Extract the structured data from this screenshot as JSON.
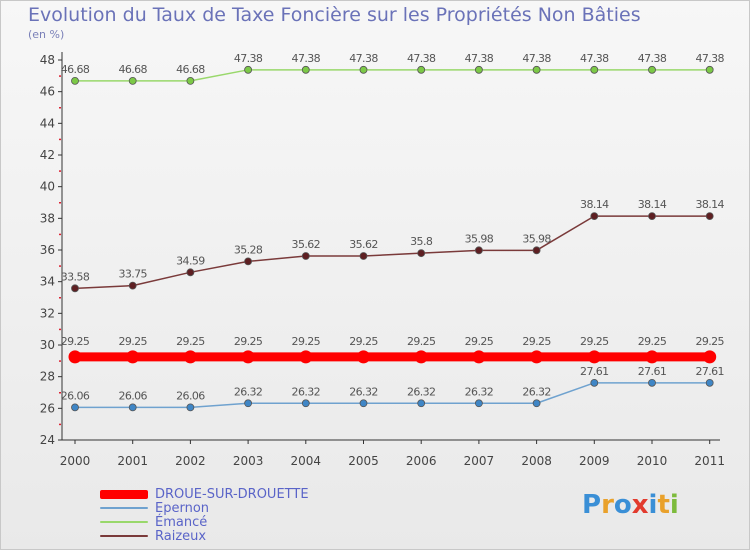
{
  "header": {
    "title": "Evolution du Taux de Taxe Foncière sur les Propriétés Non Bâties",
    "unit": "(en %)"
  },
  "logo": {
    "text": "Proxiti",
    "letters": [
      "P",
      "r",
      "o",
      "x",
      "i",
      "t",
      "i"
    ],
    "colors": [
      "#3a8fd6",
      "#e9a12b",
      "#3a8fd6",
      "#e23b2e",
      "#3a8fd6",
      "#e9a12b",
      "#7dbb3c"
    ]
  },
  "chart_data": {
    "type": "line",
    "title": "Evolution du Taux de Taxe Foncière sur les Propriétés Non Bâties",
    "ylabel": "(en %)",
    "xlabel": "",
    "ylim": [
      24,
      48
    ],
    "yticks": [
      24,
      26,
      28,
      30,
      32,
      34,
      36,
      38,
      40,
      42,
      44,
      46,
      48
    ],
    "grid": false,
    "legend": "bottom-left",
    "categories": [
      "2000",
      "2001",
      "2002",
      "2003",
      "2004",
      "2005",
      "2006",
      "2007",
      "2008",
      "2009",
      "2010",
      "2011"
    ],
    "series": [
      {
        "name": "DROUE-SUR-DROUETTE",
        "color": "#ff0000",
        "markerColor": "#ff0000",
        "values": [
          29.25,
          29.25,
          29.25,
          29.25,
          29.25,
          29.25,
          29.25,
          29.25,
          29.25,
          29.25,
          29.25,
          29.25
        ],
        "labels": [
          "29.25",
          "29.25",
          "29.25",
          "29.25",
          "29.25",
          "29.25",
          "29.25",
          "29.25",
          "29.25",
          "29.25",
          "29.25",
          "29.25"
        ],
        "emphasis": true
      },
      {
        "name": "Epernon",
        "color": "#6fa2cf",
        "markerColor": "#3f86c6",
        "values": [
          26.06,
          26.06,
          26.06,
          26.32,
          26.32,
          26.32,
          26.32,
          26.32,
          26.32,
          27.61,
          27.61,
          27.61
        ],
        "labels": [
          "26.06",
          "26.06",
          "26.06",
          "26.32",
          "26.32",
          "26.32",
          "26.32",
          "26.32",
          "26.32",
          "27.61",
          "27.61",
          "27.61"
        ],
        "emphasis": false
      },
      {
        "name": "Émancé",
        "color": "#99d86b",
        "markerColor": "#7cc947",
        "values": [
          46.68,
          46.68,
          46.68,
          47.38,
          47.38,
          47.38,
          47.38,
          47.38,
          47.38,
          47.38,
          47.38,
          47.38
        ],
        "labels": [
          "46.68",
          "46.68",
          "46.68",
          "47.38",
          "47.38",
          "47.38",
          "47.38",
          "47.38",
          "47.38",
          "47.38",
          "47.38",
          "47.38"
        ],
        "emphasis": false
      },
      {
        "name": "Raizeux",
        "color": "#7a3a3a",
        "markerColor": "#5e1f22",
        "values": [
          33.58,
          33.75,
          34.59,
          35.28,
          35.62,
          35.62,
          35.8,
          35.98,
          35.98,
          38.14,
          38.14,
          38.14
        ],
        "labels": [
          "33.58",
          "33.75",
          "34.59",
          "35.28",
          "35.62",
          "35.62",
          "35.8",
          "35.98",
          "35.98",
          "38.14",
          "38.14",
          "38.14"
        ],
        "emphasis": false
      }
    ]
  }
}
